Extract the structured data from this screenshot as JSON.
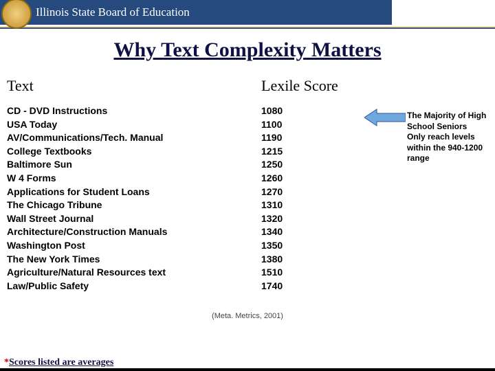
{
  "header": {
    "org_title": "Illinois State Board of Education"
  },
  "title": "Why Text Complexity Matters",
  "columns": {
    "left_header": "Text",
    "right_header": "Lexile Score"
  },
  "rows": [
    {
      "label": "CD - DVD Instructions",
      "score": "1080"
    },
    {
      "label": "USA Today",
      "score": "1100"
    },
    {
      "label": "AV/Communications/Tech. Manual",
      "score": "1190"
    },
    {
      "label": "College Textbooks",
      "score": "1215"
    },
    {
      "label": "Baltimore Sun",
      "score": "1250"
    },
    {
      "label": "W 4 Forms",
      "score": "1260"
    },
    {
      "label": "Applications for Student Loans",
      "score": "1270"
    },
    {
      "label": "The Chicago Tribune",
      "score": "1310"
    },
    {
      "label": "Wall Street Journal",
      "score": "1320"
    },
    {
      "label": "Architecture/Construction Manuals",
      "score": "1340"
    },
    {
      "label": "Washington Post",
      "score": "1350"
    },
    {
      "label": "The New York Times",
      "score": "1380"
    },
    {
      "label": "Agriculture/Natural Resources text",
      "score": "1510"
    },
    {
      "label": "Law/Public Safety",
      "score": "1740"
    }
  ],
  "note": {
    "lines": [
      "The Majority of High",
      "School Seniors",
      "Only reach levels",
      "within the 940-1200",
      "range"
    ],
    "arrow_fill": "#6fa8dc",
    "arrow_stroke": "#2f5597"
  },
  "citation": "(Meta. Metrics, 2001)",
  "footnote": {
    "asterisk": "*",
    "text": "Scores listed are averages"
  },
  "colors": {
    "header_bg": "#264a7d",
    "title_color": "#101044"
  }
}
